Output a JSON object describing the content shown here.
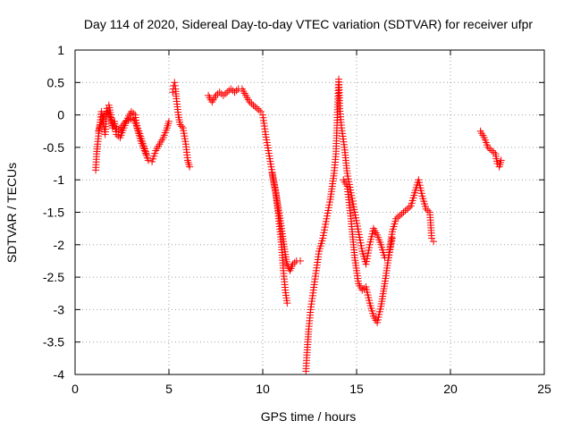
{
  "chart_data": {
    "type": "scatter",
    "title": "Day 114 of 2020, Sidereal Day-to-day VTEC variation (SDTVAR) for receiver ufpr",
    "xlabel": "GPS time / hours",
    "ylabel": "SDTVAR / TECUs",
    "xlim": [
      0,
      25
    ],
    "ylim": [
      -4,
      1
    ],
    "xticks": [
      "0",
      "5",
      "10",
      "15",
      "20",
      "25"
    ],
    "yticks": [
      "1",
      "0.5",
      "0",
      "-0.5",
      "-1",
      "-1.5",
      "-2",
      "-2.5",
      "-3",
      "-3.5",
      "-4"
    ],
    "grid": true,
    "marker": "+",
    "color": "#ff0000",
    "series": [
      {
        "name": "SDTVAR",
        "segments": [
          [
            [
              1.1,
              -0.85
            ],
            [
              1.15,
              -0.6
            ],
            [
              1.2,
              -0.45
            ],
            [
              1.3,
              -0.2
            ],
            [
              1.4,
              0.05
            ],
            [
              1.5,
              -0.1
            ],
            [
              1.6,
              -0.3
            ],
            [
              1.7,
              0.1
            ],
            [
              1.8,
              0.15
            ],
            [
              1.9,
              0.0
            ],
            [
              2.0,
              -0.2
            ],
            [
              2.1,
              -0.1
            ],
            [
              2.2,
              -0.3
            ],
            [
              2.4,
              -0.35
            ],
            [
              2.6,
              -0.2
            ],
            [
              2.8,
              -0.05
            ],
            [
              3.0,
              0.05
            ],
            [
              3.2,
              0.0
            ],
            [
              3.3,
              -0.2
            ],
            [
              3.5,
              -0.4
            ],
            [
              3.7,
              -0.55
            ],
            [
              3.9,
              -0.7
            ],
            [
              4.1,
              -0.72
            ],
            [
              4.3,
              -0.55
            ],
            [
              4.5,
              -0.45
            ],
            [
              4.7,
              -0.35
            ],
            [
              4.9,
              -0.2
            ],
            [
              5.0,
              -0.1
            ]
          ],
          [
            [
              1.25,
              -0.25
            ],
            [
              1.35,
              -0.15
            ],
            [
              1.55,
              0.0
            ],
            [
              1.75,
              0.05
            ],
            [
              1.95,
              -0.1
            ],
            [
              2.3,
              -0.25
            ],
            [
              2.7,
              -0.1
            ],
            [
              3.1,
              -0.05
            ],
            [
              3.4,
              -0.25
            ],
            [
              3.8,
              -0.6
            ]
          ],
          [
            [
              5.2,
              0.35
            ],
            [
              5.25,
              0.45
            ],
            [
              5.3,
              0.5
            ],
            [
              5.35,
              0.4
            ],
            [
              5.4,
              0.25
            ],
            [
              5.5,
              0.0
            ],
            [
              5.6,
              -0.15
            ],
            [
              5.75,
              -0.2
            ],
            [
              5.9,
              -0.45
            ],
            [
              6.0,
              -0.7
            ],
            [
              6.1,
              -0.8
            ]
          ],
          [
            [
              7.1,
              0.3
            ],
            [
              7.3,
              0.2
            ],
            [
              7.5,
              0.3
            ],
            [
              7.7,
              0.35
            ],
            [
              7.9,
              0.3
            ],
            [
              8.1,
              0.35
            ],
            [
              8.3,
              0.4
            ],
            [
              8.5,
              0.35
            ],
            [
              8.7,
              0.4
            ],
            [
              8.9,
              0.4
            ],
            [
              9.1,
              0.3
            ],
            [
              9.3,
              0.2
            ],
            [
              9.5,
              0.15
            ],
            [
              9.7,
              0.1
            ],
            [
              9.9,
              0.05
            ],
            [
              10.0,
              0.0
            ],
            [
              10.15,
              -0.3
            ],
            [
              10.3,
              -0.55
            ],
            [
              10.45,
              -0.8
            ],
            [
              10.6,
              -1.05
            ],
            [
              10.75,
              -1.3
            ],
            [
              10.9,
              -1.55
            ],
            [
              11.0,
              -1.75
            ],
            [
              11.1,
              -1.95
            ],
            [
              11.2,
              -2.15
            ],
            [
              11.3,
              -2.3
            ],
            [
              11.45,
              -2.4
            ],
            [
              11.6,
              -2.3
            ],
            [
              11.8,
              -2.25
            ],
            [
              12.0,
              -2.25
            ]
          ],
          [
            [
              10.5,
              -0.9
            ],
            [
              10.7,
              -1.2
            ],
            [
              10.85,
              -1.6
            ],
            [
              11.0,
              -2.0
            ],
            [
              11.1,
              -2.4
            ],
            [
              11.2,
              -2.7
            ],
            [
              11.3,
              -2.9
            ]
          ],
          [
            [
              12.3,
              -3.95
            ],
            [
              12.35,
              -3.7
            ],
            [
              12.45,
              -3.3
            ],
            [
              12.55,
              -3.0
            ],
            [
              12.7,
              -2.7
            ],
            [
              12.85,
              -2.4
            ],
            [
              13.0,
              -2.1
            ],
            [
              13.2,
              -1.9
            ],
            [
              13.4,
              -1.6
            ],
            [
              13.6,
              -1.3
            ],
            [
              13.8,
              -0.9
            ],
            [
              13.9,
              -0.6
            ],
            [
              13.95,
              -0.2
            ],
            [
              14.0,
              0.2
            ],
            [
              14.05,
              0.55
            ],
            [
              14.1,
              0.1
            ],
            [
              14.2,
              -0.2
            ],
            [
              14.35,
              -0.5
            ],
            [
              14.5,
              -0.9
            ],
            [
              14.7,
              -1.2
            ],
            [
              14.9,
              -1.5
            ],
            [
              15.1,
              -1.8
            ],
            [
              15.3,
              -2.1
            ],
            [
              15.5,
              -2.3
            ],
            [
              15.7,
              -2.0
            ],
            [
              15.9,
              -1.75
            ],
            [
              16.1,
              -1.85
            ],
            [
              16.3,
              -2.0
            ],
            [
              16.5,
              -2.2
            ],
            [
              16.7,
              -2.2
            ],
            [
              16.9,
              -1.8
            ],
            [
              17.1,
              -1.6
            ],
            [
              17.3,
              -1.55
            ],
            [
              17.5,
              -1.5
            ],
            [
              17.7,
              -1.45
            ],
            [
              17.9,
              -1.4
            ],
            [
              18.1,
              -1.2
            ],
            [
              18.3,
              -1.0
            ],
            [
              18.5,
              -1.25
            ],
            [
              18.7,
              -1.45
            ],
            [
              18.9,
              -1.5
            ],
            [
              19.0,
              -1.9
            ],
            [
              19.1,
              -1.95
            ]
          ],
          [
            [
              14.3,
              -1.0
            ],
            [
              14.5,
              -1.1
            ],
            [
              14.7,
              -1.6
            ],
            [
              14.9,
              -2.2
            ],
            [
              15.1,
              -2.6
            ],
            [
              15.3,
              -2.7
            ],
            [
              15.5,
              -2.65
            ],
            [
              15.7,
              -2.9
            ],
            [
              15.9,
              -3.1
            ],
            [
              16.1,
              -3.2
            ],
            [
              16.3,
              -2.95
            ],
            [
              16.5,
              -2.6
            ],
            [
              16.7,
              -2.2
            ],
            [
              16.9,
              -1.9
            ]
          ],
          [
            [
              21.6,
              -0.25
            ],
            [
              21.8,
              -0.35
            ],
            [
              22.0,
              -0.5
            ],
            [
              22.2,
              -0.55
            ],
            [
              22.4,
              -0.6
            ],
            [
              22.5,
              -0.75
            ],
            [
              22.6,
              -0.8
            ],
            [
              22.7,
              -0.7
            ]
          ]
        ]
      }
    ]
  }
}
